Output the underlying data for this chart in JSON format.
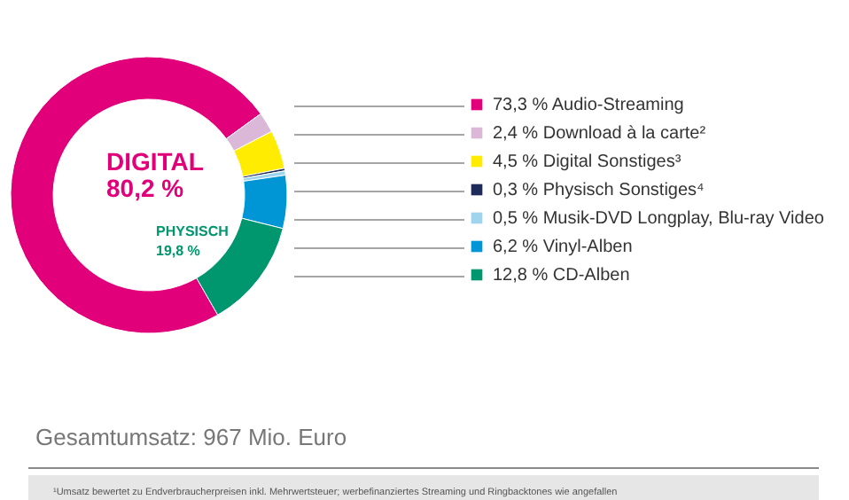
{
  "chart_data": {
    "type": "donut",
    "title": "Gesamtumsatz: 967 Mio. Euro",
    "categories": [
      "Audio-Streaming",
      "Download à la carte²",
      "Digital Sonstiges³",
      "Physisch Sonstiges⁴",
      "Musik-DVD Longplay, Blu-ray Video",
      "Vinyl-Alben",
      "CD-Alben"
    ],
    "values": [
      73.3,
      2.4,
      4.5,
      0.3,
      0.5,
      6.2,
      12.8
    ],
    "colors": [
      "#e2007a",
      "#dcb8d8",
      "#ffec00",
      "#1d2a5a",
      "#9fd4ef",
      "#0096d6",
      "#00966e"
    ],
    "value_labels": [
      "73,3 %",
      "2,4 %",
      "4,5 %",
      "0,3 %",
      "0,5 %",
      "6,2 %",
      "12,8 %"
    ],
    "annotations": [
      "DIGITAL",
      "80,2 %",
      "PHYSISCH",
      "19,8 %",
      "¹Umsatz bewertet zu Endverbraucherpreisen inkl. Mehrwertsteuer; werbefinanziertes Streaming und Ringbacktones wie angefallen"
    ],
    "legend": "right"
  }
}
